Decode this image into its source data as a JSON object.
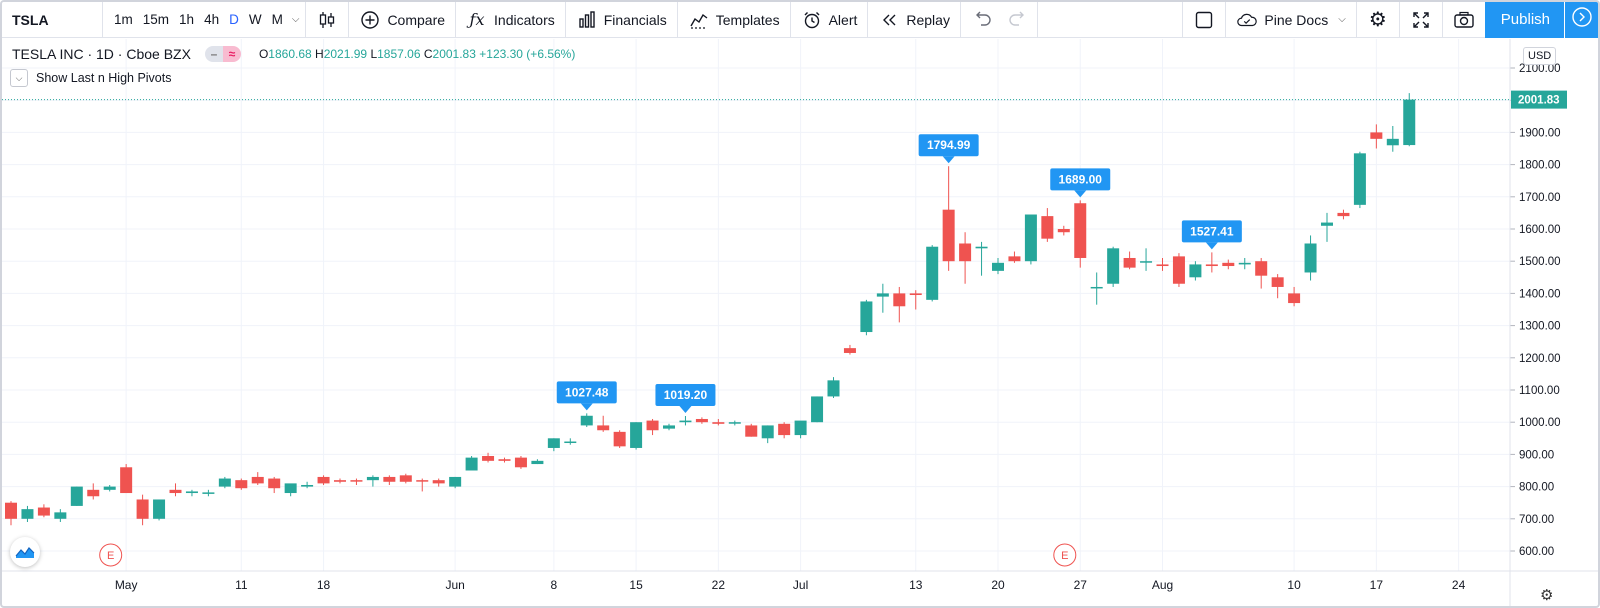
{
  "toolbar": {
    "symbol": "TSLA",
    "intervals": [
      "1m",
      "15m",
      "1h",
      "4h",
      "D",
      "W",
      "M"
    ],
    "active_interval": "D",
    "compare_label": "Compare",
    "indicators_label": "Indicators",
    "financials_label": "Financials",
    "templates_label": "Templates",
    "alert_label": "Alert",
    "replay_label": "Replay",
    "pine_docs_label": "Pine Docs",
    "publish_label": "Publish"
  },
  "legend": {
    "title": "TESLA INC · 1D · Cboe BZX",
    "open": "1860.68",
    "high": "2021.99",
    "low": "1857.06",
    "close": "2001.83",
    "change": "+123.30 (+6.56%)",
    "indicator_name": "Show Last n High Pivots"
  },
  "price_scale": {
    "currency": "USD",
    "last_price": "2001.83",
    "min": 560,
    "max": 2150,
    "ticks": [
      600,
      700,
      800,
      900,
      1000,
      1100,
      1200,
      1300,
      1400,
      1500,
      1600,
      1700,
      1800,
      1900,
      2000,
      2100
    ]
  },
  "time_scale": {
    "labels": [
      "May",
      "11",
      "18",
      "Jun",
      "8",
      "15",
      "22",
      "Jul",
      "13",
      "20",
      "27",
      "Aug",
      "10",
      "17",
      "24"
    ],
    "label_bars": [
      7,
      14,
      19,
      27,
      33,
      38,
      43,
      48,
      55,
      60,
      65,
      70,
      78,
      83,
      88
    ],
    "grid_bars": [
      -1,
      7,
      14,
      19,
      27,
      33,
      38,
      43,
      48,
      55,
      60,
      65,
      70,
      78,
      83,
      88
    ]
  },
  "earnings_markers": [
    {
      "bar": 6,
      "label": "E"
    },
    {
      "bar": 64,
      "label": "E"
    }
  ],
  "pivot_labels": [
    {
      "bar": 35,
      "price": 1027.48,
      "label": "1027.48"
    },
    {
      "bar": 41,
      "price": 1019.2,
      "label": "1019.20"
    },
    {
      "bar": 57,
      "price": 1794.99,
      "label": "1794.99"
    },
    {
      "bar": 65,
      "price": 1689.0,
      "label": "1689.00"
    },
    {
      "bar": 73,
      "price": 1527.41,
      "label": "1527.41"
    }
  ],
  "colors": {
    "up": "#26a69a",
    "down": "#ef5350",
    "pivot": "#2196f3",
    "accent": "#2962ff",
    "grid": "#f0f3fa"
  },
  "chart_data": {
    "type": "candlestick",
    "title": "TESLA INC · 1D · Cboe BZX",
    "ylabel": "USD",
    "ylim": [
      560,
      2150
    ],
    "series": [
      {
        "name": "TSLA",
        "ohlc": [
          [
            750,
            755,
            680,
            700
          ],
          [
            700,
            740,
            690,
            730
          ],
          [
            735,
            745,
            705,
            710
          ],
          [
            700,
            730,
            690,
            720
          ],
          [
            740,
            800,
            740,
            800
          ],
          [
            790,
            810,
            760,
            770
          ],
          [
            790,
            805,
            785,
            800
          ],
          [
            860,
            870,
            780,
            780
          ],
          [
            760,
            775,
            680,
            700
          ],
          [
            700,
            760,
            695,
            760
          ],
          [
            790,
            810,
            770,
            780
          ],
          [
            780,
            790,
            770,
            785
          ],
          [
            780,
            790,
            770,
            782
          ],
          [
            800,
            830,
            795,
            825
          ],
          [
            820,
            825,
            790,
            795
          ],
          [
            830,
            845,
            805,
            810
          ],
          [
            825,
            830,
            780,
            795
          ],
          [
            780,
            805,
            770,
            810
          ],
          [
            800,
            815,
            795,
            805
          ],
          [
            830,
            835,
            805,
            810
          ],
          [
            820,
            825,
            810,
            815
          ],
          [
            820,
            825,
            805,
            818
          ],
          [
            820,
            835,
            800,
            830
          ],
          [
            830,
            835,
            805,
            815
          ],
          [
            835,
            840,
            810,
            815
          ],
          [
            820,
            825,
            785,
            818
          ],
          [
            820,
            825,
            800,
            810
          ],
          [
            800,
            830,
            795,
            830
          ],
          [
            850,
            895,
            850,
            890
          ],
          [
            895,
            905,
            875,
            880
          ],
          [
            885,
            890,
            875,
            880
          ],
          [
            890,
            895,
            855,
            860
          ],
          [
            870,
            885,
            870,
            880
          ],
          [
            920,
            950,
            910,
            950
          ],
          [
            940,
            950,
            930,
            940
          ],
          [
            990,
            1027.48,
            985,
            1020
          ],
          [
            990,
            1020,
            970,
            975
          ],
          [
            970,
            975,
            920,
            925
          ],
          [
            920,
            1000,
            915,
            1000
          ],
          [
            1005,
            1010,
            960,
            975
          ],
          [
            980,
            995,
            975,
            990
          ],
          [
            1000,
            1019.2,
            990,
            1005
          ],
          [
            1010,
            1015,
            995,
            1000
          ],
          [
            1000,
            1010,
            990,
            995
          ],
          [
            1000,
            1005,
            990,
            1000
          ],
          [
            990,
            995,
            955,
            955
          ],
          [
            950,
            990,
            935,
            990
          ],
          [
            995,
            1000,
            950,
            960
          ],
          [
            960,
            1000,
            950,
            1005
          ],
          [
            1000,
            1080,
            1000,
            1080
          ],
          [
            1080,
            1140,
            1075,
            1130
          ],
          [
            1230,
            1240,
            1210,
            1215
          ],
          [
            1280,
            1380,
            1270,
            1375
          ],
          [
            1390,
            1430,
            1340,
            1400
          ],
          [
            1400,
            1420,
            1310,
            1360
          ],
          [
            1400,
            1410,
            1350,
            1395
          ],
          [
            1380,
            1550,
            1375,
            1545
          ],
          [
            1660,
            1794.99,
            1470,
            1500
          ],
          [
            1555,
            1590,
            1430,
            1500
          ],
          [
            1540,
            1560,
            1455,
            1545
          ],
          [
            1470,
            1510,
            1460,
            1495
          ],
          [
            1515,
            1530,
            1495,
            1500
          ],
          [
            1500,
            1645,
            1490,
            1645
          ],
          [
            1640,
            1665,
            1560,
            1570
          ],
          [
            1600,
            1610,
            1580,
            1590
          ],
          [
            1680,
            1689.0,
            1480,
            1510
          ],
          [
            1420,
            1465,
            1365,
            1420
          ],
          [
            1430,
            1545,
            1420,
            1540
          ],
          [
            1510,
            1530,
            1475,
            1480
          ],
          [
            1500,
            1540,
            1470,
            1500
          ],
          [
            1490,
            1510,
            1470,
            1485
          ],
          [
            1515,
            1525,
            1420,
            1430
          ],
          [
            1450,
            1500,
            1440,
            1490
          ],
          [
            1490,
            1527.41,
            1465,
            1485
          ],
          [
            1495,
            1505,
            1475,
            1485
          ],
          [
            1490,
            1510,
            1475,
            1495
          ],
          [
            1500,
            1510,
            1415,
            1455
          ],
          [
            1450,
            1460,
            1385,
            1420
          ],
          [
            1400,
            1420,
            1360,
            1370
          ],
          [
            1465,
            1580,
            1440,
            1555
          ],
          [
            1610,
            1650,
            1560,
            1620
          ],
          [
            1650,
            1660,
            1630,
            1640
          ],
          [
            1675,
            1840,
            1665,
            1835
          ],
          [
            1900,
            1925,
            1850,
            1880
          ],
          [
            1860,
            1920,
            1840,
            1880
          ],
          [
            1860.68,
            2021.99,
            1857.06,
            2001.83
          ]
        ]
      }
    ]
  }
}
